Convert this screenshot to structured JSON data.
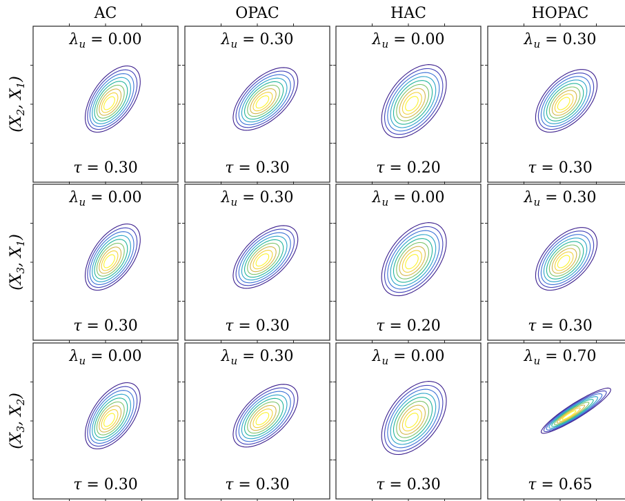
{
  "columns": [
    "AC",
    "OPAC",
    "HAC",
    "HOPAC"
  ],
  "rows": [
    {
      "label": [
        "(X",
        "2",
        ", X",
        "1",
        ")"
      ]
    },
    {
      "label": [
        "(X",
        "3",
        ", X",
        "1",
        ")"
      ]
    },
    {
      "label": [
        "(X",
        "3",
        ", X",
        "2",
        ")"
      ]
    }
  ],
  "colors": [
    "#3a1d8c",
    "#3f3fb8",
    "#3b72d6",
    "#2aa2c9",
    "#21b49a",
    "#7cc36a",
    "#d2b74a",
    "#f2d23c",
    "#fbf32a"
  ],
  "chart_data": {
    "type": "contour",
    "grid": "3x4",
    "panels": [
      {
        "row": 0,
        "col": 0,
        "family": "AC",
        "lambda_u": "0.00",
        "tau": "0.30"
      },
      {
        "row": 0,
        "col": 1,
        "family": "OPAC",
        "lambda_u": "0.30",
        "tau": "0.30"
      },
      {
        "row": 0,
        "col": 2,
        "family": "HAC",
        "lambda_u": "0.00",
        "tau": "0.20"
      },
      {
        "row": 0,
        "col": 3,
        "family": "HOPAC",
        "lambda_u": "0.30",
        "tau": "0.30"
      },
      {
        "row": 1,
        "col": 0,
        "family": "AC",
        "lambda_u": "0.00",
        "tau": "0.30"
      },
      {
        "row": 1,
        "col": 1,
        "family": "OPAC",
        "lambda_u": "0.30",
        "tau": "0.30"
      },
      {
        "row": 1,
        "col": 2,
        "family": "HAC",
        "lambda_u": "0.00",
        "tau": "0.20"
      },
      {
        "row": 1,
        "col": 3,
        "family": "HOPAC",
        "lambda_u": "0.30",
        "tau": "0.30"
      },
      {
        "row": 2,
        "col": 0,
        "family": "AC",
        "lambda_u": "0.00",
        "tau": "0.30"
      },
      {
        "row": 2,
        "col": 1,
        "family": "OPAC",
        "lambda_u": "0.30",
        "tau": "0.30"
      },
      {
        "row": 2,
        "col": 2,
        "family": "HAC",
        "lambda_u": "0.00",
        "tau": "0.30"
      },
      {
        "row": 2,
        "col": 3,
        "family": "HOPAC",
        "lambda_u": "0.70",
        "tau": "0.65"
      }
    ]
  }
}
